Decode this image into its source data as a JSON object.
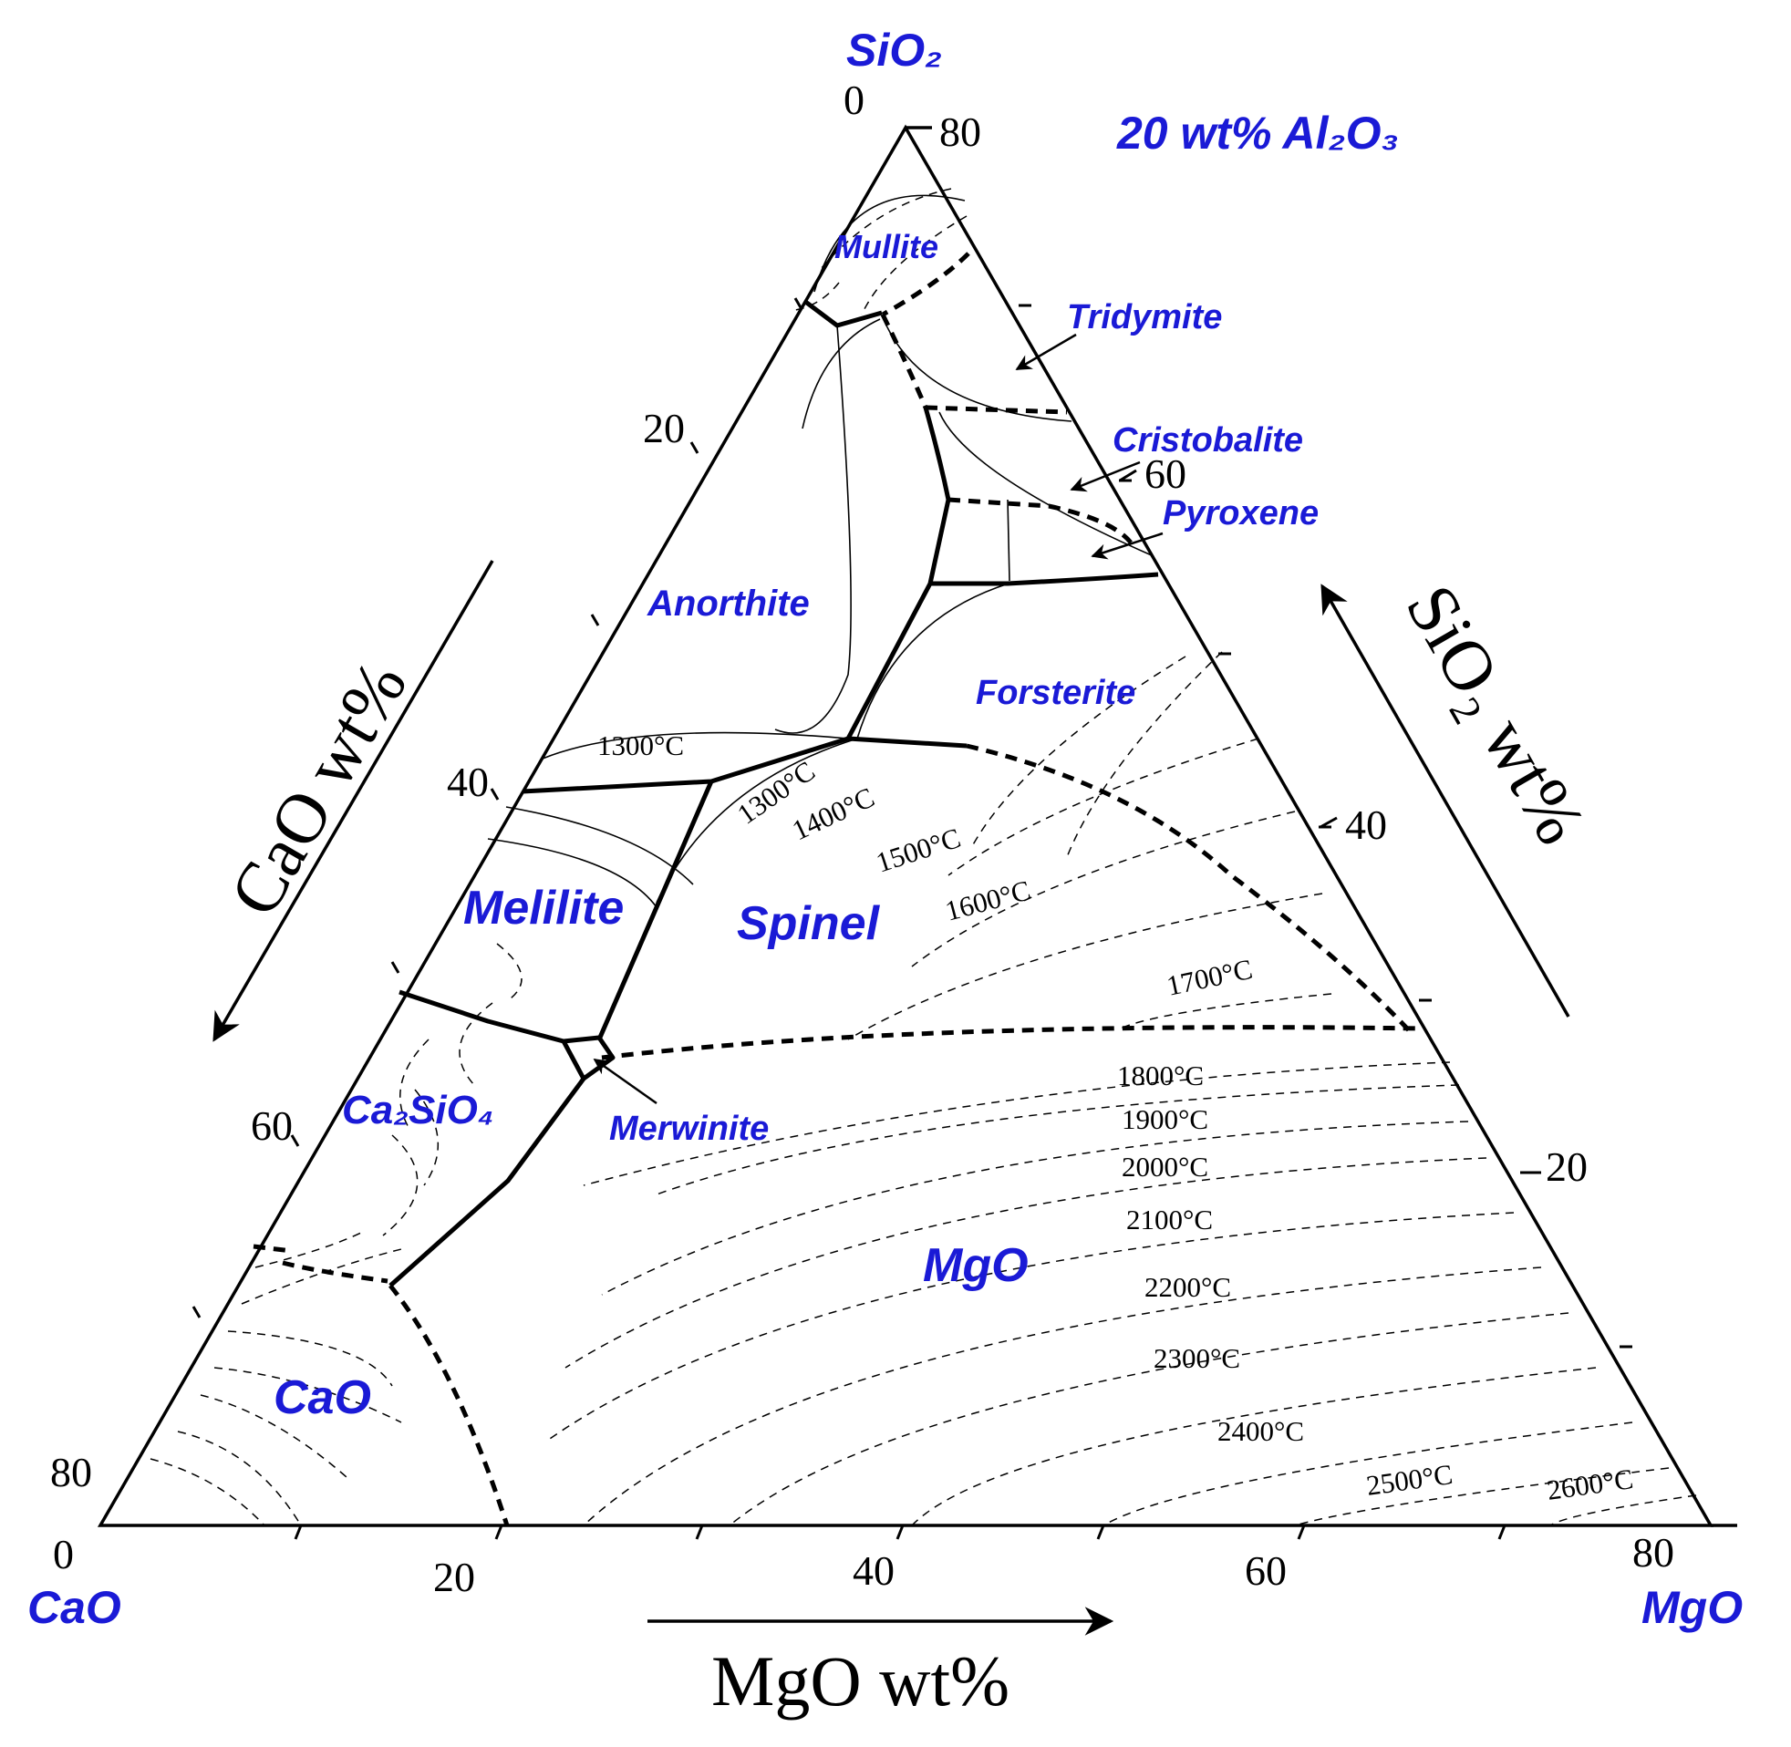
{
  "diagram": {
    "title": "20 wt% Al₂O₃",
    "corners": {
      "top": "SiO₂",
      "left": "CaO",
      "right": "MgO"
    },
    "axis_titles": {
      "left": "CaO wt%",
      "right": "SiO₂ wt%",
      "bottom": "MgO wt%"
    },
    "ticks": {
      "left": [
        "0",
        "20",
        "40",
        "60",
        "80"
      ],
      "right": [
        "80",
        "60",
        "40",
        "20"
      ],
      "bottom": [
        "0",
        "20",
        "40",
        "60",
        "80"
      ]
    },
    "phases": {
      "mullite": "Mullite",
      "tridymite": "Tridymite",
      "cristobalite": "Cristobalite",
      "pyroxene": "Pyroxene",
      "anorthite": "Anorthite",
      "forsterite": "Forsterite",
      "melilite": "Melilite",
      "spinel": "Spinel",
      "merwinite": "Merwinite",
      "ca2sio4": "Ca₂SiO₄",
      "mgo": "MgO",
      "cao": "CaO"
    },
    "isotherms": {
      "t1300a": "1300°C",
      "t1300b": "1300°C",
      "t1400": "1400°C",
      "t1500": "1500°C",
      "t1600": "1600°C",
      "t1700": "1700°C",
      "t1800": "1800°C",
      "t1900": "1900°C",
      "t2000": "2000°C",
      "t2100": "2100°C",
      "t2200": "2200°C",
      "t2300": "2300°C",
      "t2400": "2400°C",
      "t2500": "2500°C",
      "t2600": "2600°C"
    }
  }
}
